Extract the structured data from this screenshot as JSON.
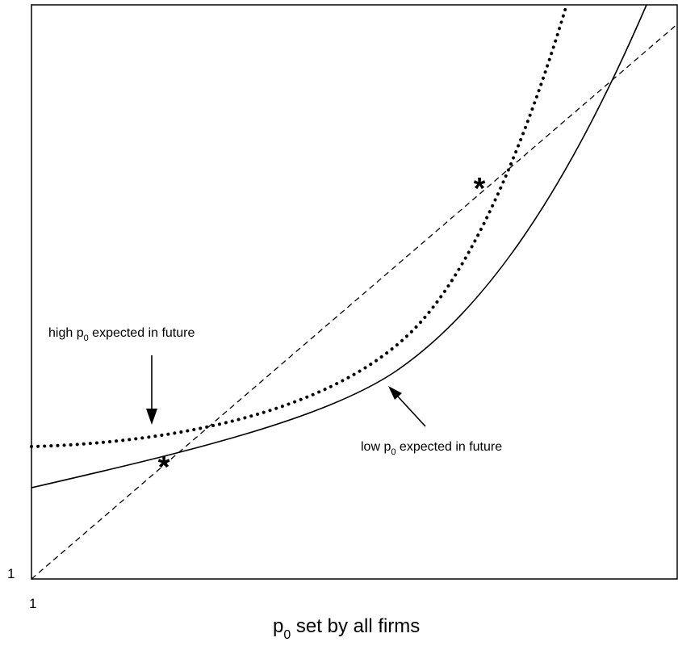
{
  "diagram": {
    "x_tick_origin": "1",
    "y_tick_origin": "1",
    "x_axis_title": {
      "main": "p",
      "sub": "0",
      "rest": " set by all firms"
    },
    "annotations": {
      "high": {
        "pre": "high p",
        "sub": "0",
        "post": " expected in future"
      },
      "low": {
        "pre": "low p",
        "sub": "0",
        "post": " expected in future"
      }
    },
    "equilibrium_marker": "*",
    "colors": {
      "line": "#000000",
      "background": "#ffffff"
    }
  }
}
